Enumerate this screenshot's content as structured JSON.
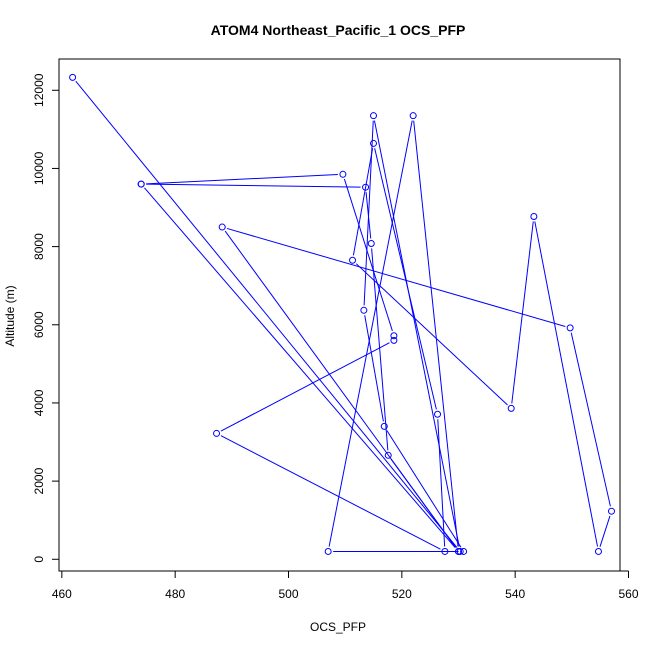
{
  "chart_data": {
    "type": "line",
    "title": "ATOM4 Northeast_Pacific_1 OCS_PFP",
    "xlabel": "OCS_PFP",
    "ylabel": "Altitude (m)",
    "xlim": [
      459.5,
      558.5
    ],
    "ylim": [
      -300,
      12800
    ],
    "xticks": [
      460,
      480,
      500,
      520,
      540,
      560
    ],
    "yticks": [
      0,
      2000,
      4000,
      6000,
      8000,
      10000,
      12000
    ],
    "xtick_labels": [
      "460",
      "480",
      "500",
      "520",
      "540",
      "560"
    ],
    "ytick_labels": [
      "0",
      "2000",
      "4000",
      "6000",
      "8000",
      "10000",
      "12000"
    ],
    "grid": false,
    "legend": "none",
    "line_color": "#0000ff",
    "marker": "open-circle",
    "series": [
      {
        "x": [
          461.9,
          530.3,
          515.0,
          513.3,
          516.9,
          530.9,
          507.0,
          522.0,
          530.0,
          474.0,
          513.6,
          514.6,
          517.6,
          530.0,
          488.3,
          549.7,
          557.0,
          554.7,
          543.3,
          539.3,
          511.3,
          515.0,
          526.3,
          527.6,
          487.3,
          518.6,
          518.6,
          509.6,
          474.0
        ],
        "y": [
          12330,
          200,
          11350,
          6370,
          3400,
          200,
          200,
          11350,
          200,
          9600,
          9520,
          8080,
          2660,
          200,
          8500,
          5920,
          1230,
          200,
          8770,
          3860,
          7650,
          10640,
          3710,
          200,
          3220,
          5600,
          5720,
          9850,
          9600
        ]
      }
    ]
  }
}
